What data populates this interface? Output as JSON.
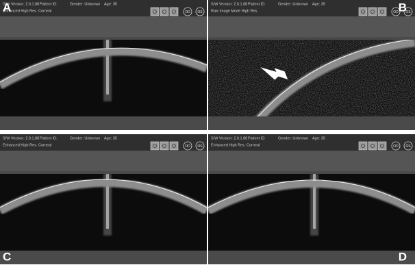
{
  "panels": [
    {
      "letter": "A",
      "version": "S/W Version: 2.0.1.88",
      "patient": "Patient ID:",
      "gender": "Gender: Unknown",
      "age": "Age: 35",
      "mode": "Enhanced High Res. Corneal",
      "eyes": [
        "OD",
        "OS"
      ]
    },
    {
      "letter": "B",
      "version": "S/W Version: 2.0.1.88",
      "patient": "Patient ID:",
      "gender": "Gender: Unknown",
      "age": "Age: 35",
      "mode": "Raw Image Mode High Res.",
      "eyes": [
        "OD",
        "OS"
      ]
    },
    {
      "letter": "C",
      "version": "S/W Version: 2.0.1.88",
      "patient": "Patient ID:",
      "gender": "Gender: Unknown",
      "age": "Age: 35",
      "mode": "Enhanced High Res. Corneal",
      "eyes": [
        "OD",
        "OS"
      ]
    },
    {
      "letter": "D",
      "version": "S/W Version: 2.0.1.88",
      "patient": "Patient ID:",
      "gender": "Gender: Unknown",
      "age": "Age: 35",
      "mode": "Enhanced High Res. Corneal",
      "eyes": [
        "OD",
        "OS"
      ]
    }
  ]
}
